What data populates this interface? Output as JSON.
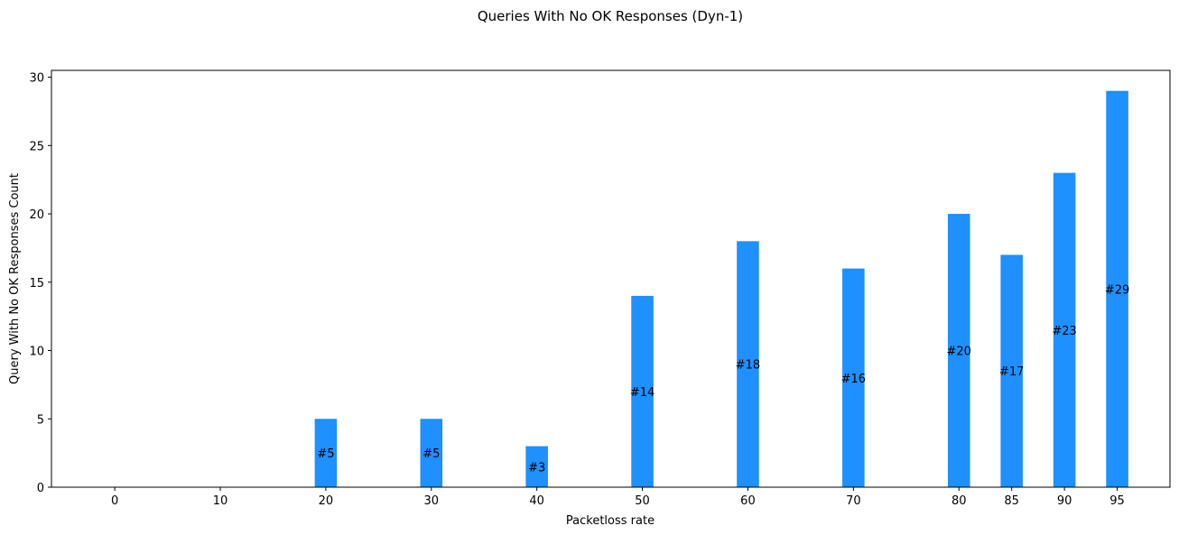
{
  "chart_data": {
    "type": "bar",
    "title": "Queries With No OK Responses (Dyn-1)",
    "xlabel": "Packetloss rate",
    "ylabel": "Query With No OK Responses Count",
    "x": [
      0,
      10,
      20,
      30,
      40,
      50,
      60,
      70,
      80,
      85,
      90,
      95
    ],
    "categories": [
      "0",
      "10",
      "20",
      "30",
      "40",
      "50",
      "60",
      "70",
      "80",
      "85",
      "90",
      "95"
    ],
    "values": [
      0,
      0,
      5,
      5,
      3,
      14,
      18,
      16,
      20,
      17,
      23,
      29
    ],
    "bar_labels": [
      "",
      "",
      "#5",
      "#5",
      "#3",
      "#14",
      "#18",
      "#16",
      "#20",
      "#17",
      "#23",
      "#29"
    ],
    "xlim": [
      -6,
      100
    ],
    "ylim": [
      0,
      30.5
    ],
    "yticks": [
      0,
      5,
      10,
      15,
      20,
      25,
      30
    ],
    "bar_color": "#1e90ff",
    "grid": false,
    "legend": "none"
  }
}
